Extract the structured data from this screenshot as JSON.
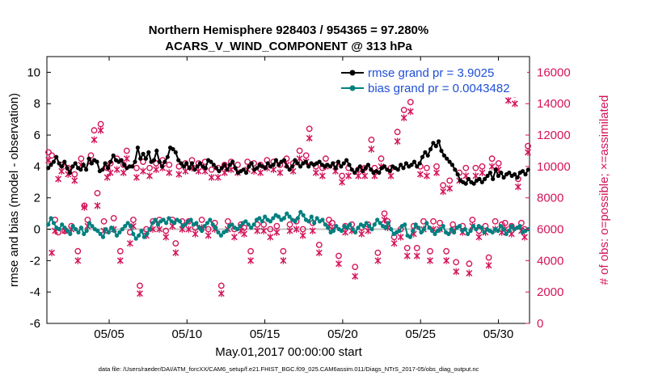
{
  "chart_data": {
    "type": "line",
    "title_line1": "Northern Hemisphere 928403 / 954365 = 97.280%",
    "title_line2": "ACARS_V_WIND_COMPONENT @ 313 hPa",
    "xlabel": "May.01,2017 00:00:00 start",
    "ylabel": "rmse and bias (model - observation)",
    "y2label": "# of obs: o=possible; ×=assimilated",
    "footnote": "data file: /Users/raeder/DAI/ATM_forcXX/CAM6_setup/f.e21.FHIST_BGC.f09_025.CAM6assim.011/Diags_NTrS_2017-05/obs_diag_output.nc",
    "xlim": [
      1,
      32
    ],
    "ylim": [
      -6,
      11
    ],
    "y2lim": [
      0,
      17000
    ],
    "xticks": [
      5,
      10,
      15,
      20,
      25,
      30
    ],
    "xticklabels": [
      "05/05",
      "05/10",
      "05/15",
      "05/20",
      "05/25",
      "05/30"
    ],
    "yticks": [
      -6,
      -4,
      -2,
      0,
      2,
      4,
      6,
      8,
      10
    ],
    "y2ticks": [
      0,
      2000,
      4000,
      6000,
      8000,
      10000,
      12000,
      14000,
      16000
    ],
    "colors": {
      "rmse": "#000000",
      "bias": "#00807f",
      "obs": "#d4145a",
      "zero": "#c0c0c0",
      "legend_text": "#1f4fd6"
    },
    "series": [
      {
        "name": "rmse grand pr = 3.9025",
        "key": "rmse",
        "values": [
          3.9,
          4.1,
          4.3,
          4.6,
          4.2,
          4.0,
          4.3,
          3.9,
          3.6,
          4.0,
          4.2,
          3.9,
          3.8,
          4.1,
          3.8,
          4.5,
          4.2,
          4.4,
          4.3,
          3.7,
          3.8,
          4.2,
          3.9,
          4.3,
          4.7,
          4.4,
          4.3,
          4.4,
          4.1,
          3.9,
          4.0,
          4.0,
          4.3,
          5.2,
          4.5,
          4.8,
          4.5,
          4.9,
          4.3,
          4.4,
          5.0,
          4.3,
          4.0,
          4.3,
          4.6,
          5.2,
          5.1,
          4.9,
          4.4,
          4.2,
          4.0,
          4.2,
          3.9,
          4.2,
          3.8,
          4.0,
          4.2,
          4.0,
          3.9,
          4.4,
          4.3,
          4.1,
          3.9,
          3.7,
          3.9,
          4.1,
          3.8,
          4.1,
          4.3,
          3.9,
          3.6,
          3.7,
          3.8,
          3.6,
          4.0,
          4.2,
          3.8,
          3.9,
          4.1,
          4.0,
          3.9,
          4.2,
          4.0,
          4.1,
          4.4,
          4.1,
          4.3,
          4.4,
          4.0,
          3.8,
          4.0,
          4.4,
          4.2,
          4.0,
          4.2,
          4.3,
          4.0,
          4.2,
          4.1,
          4.2,
          4.3,
          4.1,
          4.0,
          4.1,
          4.0,
          4.2,
          3.9,
          4.3,
          4.0,
          4.2,
          4.4,
          4.1,
          3.8,
          3.6,
          3.8,
          4.0,
          3.7,
          3.9,
          4.1,
          3.8,
          3.6,
          3.7,
          3.6,
          3.9,
          4.0,
          3.8,
          3.7,
          4.0,
          3.9,
          3.8,
          4.1,
          3.9,
          4.2,
          4.0,
          4.1,
          4.3,
          4.0,
          4.2,
          4.6,
          4.9,
          4.7,
          5.1,
          5.5,
          5.3,
          5.6,
          5.0,
          4.7,
          4.5,
          4.3,
          4.1,
          3.8,
          3.5,
          3.1,
          3.0,
          2.9,
          3.2,
          3.0,
          2.9,
          3.1,
          3.2,
          3.0,
          3.2,
          3.4,
          3.6,
          3.2,
          3.8,
          3.4,
          3.6,
          3.3,
          3.5,
          3.6,
          3.4,
          3.5,
          3.3,
          3.6,
          3.7,
          3.5,
          3.8
        ]
      },
      {
        "name": "bias grand pr = 0.0043482",
        "key": "bias",
        "values": [
          0.3,
          0.7,
          0.4,
          0.1,
          0.0,
          0.3,
          0.1,
          -0.1,
          -0.3,
          0.2,
          0.0,
          -0.2,
          0.1,
          -0.3,
          -0.1,
          0.4,
          0.2,
          0.0,
          -0.1,
          -0.3,
          -0.5,
          0.0,
          -0.2,
          0.1,
          -0.1,
          -0.4,
          -0.2,
          0.0,
          0.2,
          0.4,
          0.2,
          -0.3,
          -0.6,
          -0.4,
          -0.1,
          -0.5,
          -0.3,
          0.0,
          0.4,
          0.6,
          0.3,
          0.5,
          0.6,
          0.4,
          0.7,
          0.5,
          0.4,
          0.6,
          0.5,
          0.2,
          0.3,
          0.5,
          0.6,
          0.3,
          0.4,
          0.1,
          -0.1,
          0.2,
          0.4,
          0.6,
          0.3,
          0.1,
          -0.2,
          -0.4,
          -0.2,
          -0.1,
          0.2,
          0.3,
          0.1,
          0.0,
          0.2,
          0.4,
          0.5,
          0.3,
          0.1,
          0.3,
          0.6,
          0.7,
          0.5,
          0.8,
          0.6,
          0.5,
          0.7,
          0.9,
          0.8,
          0.6,
          0.7,
          1.0,
          0.8,
          0.6,
          0.5,
          0.7,
          1.1,
          0.9,
          0.6,
          0.5,
          0.8,
          0.4,
          0.7,
          0.5,
          0.6,
          0.3,
          0.1,
          -0.2,
          -0.1,
          0.2,
          0.0,
          -0.1,
          0.2,
          0.1,
          0.3,
          0.0,
          -0.2,
          0.1,
          0.3,
          0.2,
          0.4,
          0.2,
          0.0,
          0.3,
          0.6,
          0.4,
          0.2,
          0.1,
          0.4,
          0.0,
          -0.3,
          -0.2,
          -0.1,
          0.2,
          0.3,
          -0.4,
          -0.5,
          -0.1,
          0.3,
          0.1,
          -0.2,
          0.0,
          0.4,
          0.1,
          -0.1,
          -0.3,
          -0.1,
          0.0,
          0.2,
          -0.2,
          -0.3,
          0.0,
          -0.2,
          0.1,
          0.2,
          -0.1,
          0.0,
          -0.3,
          -0.1,
          0.2,
          0.0,
          0.2,
          0.1,
          -0.2,
          0.0,
          -0.1,
          -0.2,
          0.0,
          -0.1,
          0.2,
          0.0,
          -0.3,
          -0.1,
          0.2,
          0.0,
          0.1,
          0.2,
          -0.2,
          -0.1,
          0.0
        ]
      },
      {
        "name": "possible",
        "key": "possible",
        "values": [
          10900,
          10700,
          6600,
          5800,
          10100,
          5900,
          9900,
          6200,
          9500,
          4600,
          10500,
          7500,
          6600,
          10700,
          12300,
          8300,
          12700,
          6500,
          9900,
          10200,
          6700,
          10500,
          4600,
          10100,
          11000,
          5800,
          6600,
          9900,
          2400,
          10300,
          6000,
          9900,
          6500,
          10200,
          6600,
          10400,
          5900,
          10100,
          6600,
          5100,
          10000,
          6500,
          10200,
          6500,
          10400,
          6100,
          10200,
          6600,
          10300,
          6000,
          9800,
          6400,
          9900,
          2400,
          10100,
          6500,
          10300,
          6000,
          10100,
          6300,
          6100,
          10300,
          4600,
          10200,
          6300,
          10100,
          6300,
          10400,
          6000,
          10300,
          6200,
          10100,
          4600,
          10500,
          6300,
          10200,
          6500,
          11000,
          6000,
          10700,
          12400,
          6400,
          10000,
          5000,
          9900,
          10500,
          6600,
          6400,
          10100,
          4300,
          9400,
          6200,
          9900,
          6300,
          3600,
          9800,
          6100,
          9900,
          6300,
          11700,
          9900,
          4500,
          10500,
          7000,
          6500,
          9900,
          5500,
          12200,
          6000,
          13600,
          4800,
          14100,
          6200,
          4800,
          10000,
          6500,
          9900,
          4600,
          6500,
          10000,
          6400,
          8800,
          4600,
          9100,
          6300,
          3900,
          9600,
          6200,
          9900,
          3800,
          6600,
          9900,
          5900,
          10000,
          6200,
          4200,
          10500,
          6500,
          10200,
          6300,
          6400,
          14800,
          6200,
          14600,
          9200,
          6400,
          6000,
          11300
        ]
      },
      {
        "name": "assimilated",
        "key": "assimilated",
        "values": [
          10400,
          4500,
          5900,
          9200,
          9700,
          5900,
          9500,
          6000,
          9100,
          4000,
          10100,
          7400,
          6200,
          10300,
          11700,
          7500,
          12300,
          5900,
          9300,
          9600,
          6000,
          9800,
          4000,
          9600,
          10500,
          5100,
          6200,
          9300,
          1900,
          9700,
          5600,
          9400,
          6000,
          9800,
          6000,
          9900,
          5500,
          9600,
          6200,
          4500,
          9500,
          6000,
          9700,
          6000,
          9900,
          5700,
          9700,
          6100,
          9700,
          5600,
          9300,
          6000,
          9300,
          1900,
          9600,
          6000,
          9800,
          5500,
          9600,
          5900,
          5700,
          9800,
          4000,
          9700,
          5900,
          9600,
          5900,
          9900,
          5500,
          9800,
          5800,
          9600,
          4000,
          10100,
          5900,
          9700,
          6000,
          10500,
          5600,
          10300,
          11800,
          5900,
          9600,
          4500,
          9400,
          10000,
          6200,
          6000,
          9700,
          3800,
          9000,
          5800,
          9400,
          5900,
          3000,
          9400,
          5700,
          9400,
          5900,
          11100,
          9400,
          4000,
          10000,
          6600,
          6100,
          9400,
          5100,
          11600,
          5500,
          13100,
          4300,
          13500,
          5700,
          4300,
          9500,
          6000,
          9400,
          4000,
          6000,
          9600,
          6000,
          8400,
          4000,
          8600,
          5900,
          3300,
          9100,
          5800,
          9400,
          3200,
          6200,
          9400,
          5500,
          9600,
          5800,
          3700,
          10000,
          6000,
          9800,
          5800,
          6000,
          14200,
          5700,
          14000,
          8700,
          5900,
          5500,
          10900
        ]
      }
    ]
  }
}
